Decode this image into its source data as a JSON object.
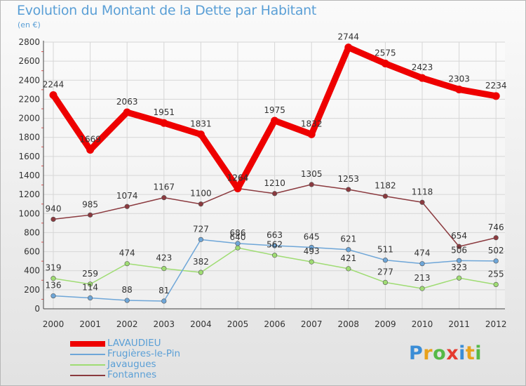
{
  "title": "Evolution du Montant de la Dette par Habitant",
  "subtitle": "(en €)",
  "logo": {
    "text": "Proxiti",
    "letters": [
      {
        "ch": "P",
        "color": "#3b8dd6"
      },
      {
        "ch": "r",
        "color": "#e8a21c"
      },
      {
        "ch": "o",
        "color": "#56b947"
      },
      {
        "ch": "x",
        "color": "#e53b2f"
      },
      {
        "ch": "i",
        "color": "#3b8dd6"
      },
      {
        "ch": "t",
        "color": "#e8a21c"
      },
      {
        "ch": "i",
        "color": "#56b947"
      }
    ]
  },
  "chart_data": {
    "type": "line",
    "title": "Evolution du Montant de la Dette par Habitant",
    "subtitle": "(en €)",
    "categories": [
      "2000",
      "2001",
      "2002",
      "2003",
      "2004",
      "2005",
      "2006",
      "2007",
      "2008",
      "2009",
      "2010",
      "2011",
      "2012"
    ],
    "ylim": [
      0,
      2800
    ],
    "yticks": [
      0,
      200,
      400,
      600,
      800,
      1000,
      1200,
      1400,
      1600,
      1800,
      2000,
      2200,
      2400,
      2600,
      2800
    ],
    "grid": true,
    "legend_position": "bottom-left",
    "series": [
      {
        "name": "LAVAUDIEU",
        "color": "#ee0000",
        "values": [
          2244,
          1669,
          2063,
          1951,
          1831,
          1264,
          1975,
          1832,
          2744,
          2575,
          2423,
          2303,
          2234
        ],
        "labels": [
          "2244",
          "1669",
          "2063",
          "1951",
          "1831",
          "1264",
          "1975",
          "1832",
          "2744",
          "2575",
          "2423",
          "2303",
          "2234"
        ]
      },
      {
        "name": "Frugières-le-Pin",
        "color": "#6ea6d8",
        "values": [
          136,
          114,
          88,
          81,
          727,
          686,
          663,
          645,
          621,
          511,
          474,
          506,
          502
        ],
        "labels": [
          "136",
          "114",
          "88",
          "81",
          "727",
          "686",
          "663",
          "645",
          "621",
          "511",
          "474",
          "506",
          "502"
        ]
      },
      {
        "name": "Javaugues",
        "color": "#9fdc73",
        "values": [
          319,
          259,
          474,
          423,
          382,
          640,
          562,
          493,
          421,
          277,
          213,
          323,
          255
        ],
        "labels": [
          "319",
          "259",
          "474",
          "423",
          "382",
          "640",
          "562",
          "493",
          "421",
          "277",
          "213",
          "323",
          "255"
        ]
      },
      {
        "name": "Fontannes",
        "color": "#8b3a3f",
        "values": [
          940,
          985,
          1074,
          1167,
          1100,
          1264,
          1210,
          1305,
          1253,
          1182,
          1118,
          654,
          746
        ],
        "labels": [
          "940",
          "985",
          "1074",
          "1167",
          "1100",
          "1264",
          "1210",
          "1305",
          "1253",
          "1182",
          "1118",
          "654",
          "746"
        ]
      }
    ]
  }
}
